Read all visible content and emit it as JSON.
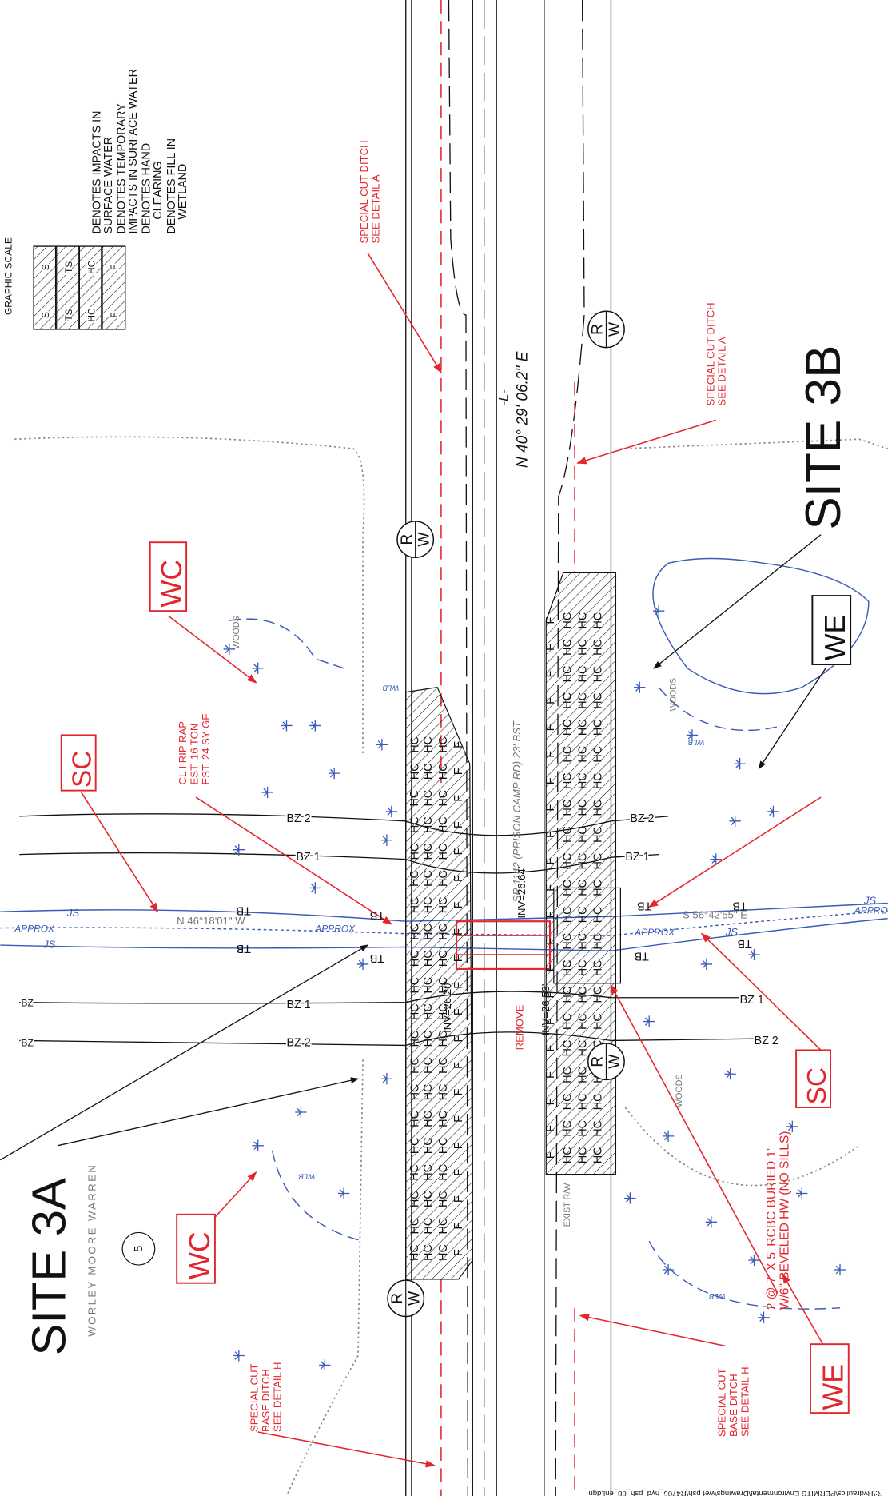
{
  "graphic_scale_label": "GRAPHIC SCALE",
  "legend": [
    {
      "code": "S",
      "lines": [
        "DENOTES IMPACTS IN",
        "SURFACE WATER"
      ]
    },
    {
      "code": "TS",
      "lines": [
        "DENOTES TEMPORARY",
        "IMPACTS IN SURFACE WATER"
      ]
    },
    {
      "code": "HC",
      "lines": [
        "DENOTES HAND",
        "CLEARING"
      ]
    },
    {
      "code": "F",
      "lines": [
        "DENOTES FILL IN",
        "WETLAND"
      ]
    }
  ],
  "site_labels": [
    "SITE 3A",
    "SITE 3B"
  ],
  "impact_tags": [
    "WC",
    "SC",
    "WE"
  ],
  "alignment": {
    "label": "-L-",
    "bearing": "N 40° 29' 06.2\" E"
  },
  "road_label": "SR 1142 (PRISON CAMP RD) 23' BST",
  "notes": {
    "special_cut_ditch": [
      "SPECIAL CUT DITCH",
      "SEE DETAIL A"
    ],
    "special_cut_base_ditch": [
      "SPECIAL CUT",
      "BASE DITCH",
      "SEE DETAIL H"
    ],
    "rip_rap": [
      "CL I RIP RAP",
      "EST. 16 TON",
      "EST. 24 SY GF"
    ],
    "culvert": [
      "2 @ 7' X 5' RCBC BURIED 1'",
      "W/6\" BEVELED HW (NO SILLS)"
    ],
    "remove": "REMOVE"
  },
  "inverts": [
    "INV=26.64'",
    "INV=26.53'",
    "INV=26.20'"
  ],
  "stream": {
    "label": "JS",
    "approx": "APPROX",
    "bearings": [
      "N 46°18'01\" W",
      "S 56°42'55\" E"
    ]
  },
  "buffer_labels": [
    "BZ 1",
    "BZ 2",
    "BZ"
  ],
  "top_of_bank": "TB",
  "right_of_way": [
    "R",
    "W"
  ],
  "exist_row": "EXIST R/W",
  "woods": "WOODS",
  "wetland_boundary": "WLB",
  "property_owner": "WORLEY MOORE WARREN",
  "parcel_number": "5",
  "file_path": "R:\\Hydraulics\\PERMITS Environmental\\Drawings\\wet psh\\R4705_hyd_psh_08_enl.dgn"
}
